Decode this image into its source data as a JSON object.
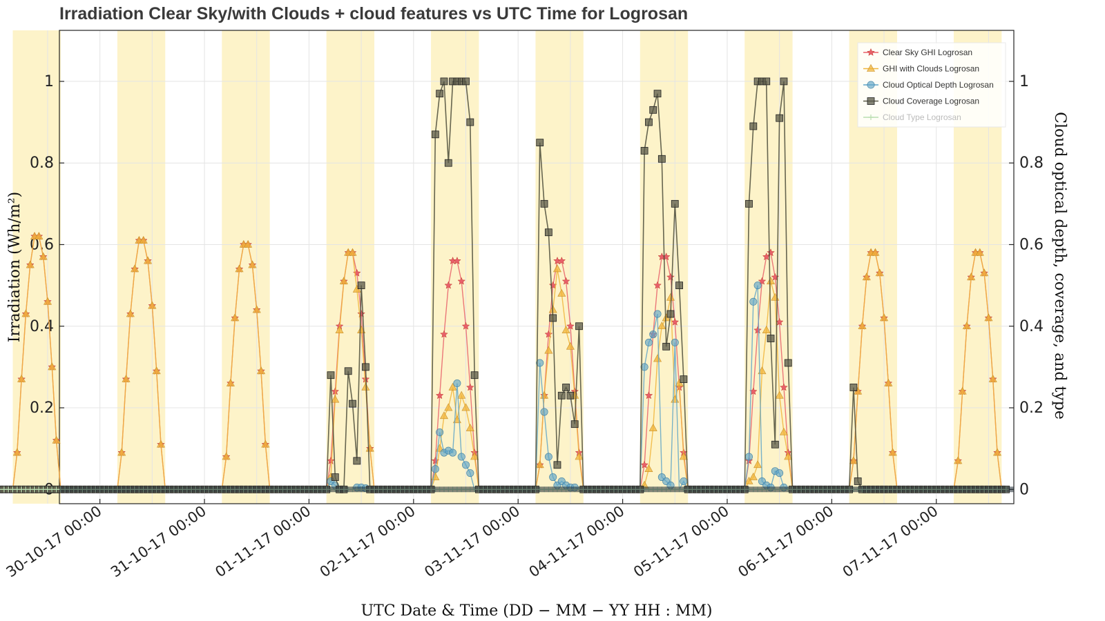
{
  "chart_data": {
    "type": "line",
    "title": "Irradiation Clear Sky/with Clouds + cloud features vs UTC Time for Logrosan",
    "xlabel": "UTC Date & Time (DD − MM − YY  HH : MM)",
    "ylabel": "Irradiation (Wh/m²)",
    "ylabel2": "Cloud optical depth, coverage, and type",
    "x_unit": "hours since 29-10-17 00:00 UTC",
    "xlim": [
      14.7,
      233.8
    ],
    "ylim": [
      -0.035,
      1.125
    ],
    "y2lim": [
      -0.035,
      1.125
    ],
    "yticks": [
      "0",
      "0.2",
      "0.4",
      "0.6",
      "0.8",
      "1"
    ],
    "yticks_values": [
      0,
      0.2,
      0.4,
      0.6,
      0.8,
      1
    ],
    "xticks_values": [
      24,
      48,
      72,
      96,
      120,
      144,
      168,
      192,
      216
    ],
    "xticks": [
      "30-10-17 00:00",
      "31-10-17 00:00",
      "01-11-17 00:00",
      "02-11-17 00:00",
      "03-11-17 00:00",
      "04-11-17 00:00",
      "05-11-17 00:00",
      "06-11-17 00:00",
      "07-11-17 00:00"
    ],
    "grid": true,
    "legend_position": "top-right",
    "daytime_shading": [
      [
        4,
        15
      ],
      [
        28,
        39
      ],
      [
        52,
        63
      ],
      [
        76,
        87
      ],
      [
        100,
        111
      ],
      [
        124,
        135
      ],
      [
        148,
        159
      ],
      [
        172,
        183
      ],
      [
        196,
        207
      ],
      [
        220,
        231
      ]
    ],
    "x_range": [
      0,
      232
    ],
    "day_offsets": [
      0,
      24,
      48,
      72,
      96,
      120,
      144,
      168,
      192,
      216
    ],
    "daylight_hours": [
      5,
      6,
      7,
      8,
      9,
      10,
      11,
      12,
      13,
      14
    ],
    "series": [
      {
        "name": "Clear Sky GHI Logrosan",
        "color": "#e8606a",
        "marker": "star",
        "days": [
          [
            0.09,
            0.27,
            0.43,
            0.55,
            0.62,
            0.62,
            0.57,
            0.46,
            0.3,
            0.12
          ],
          [
            0.09,
            0.27,
            0.43,
            0.54,
            0.61,
            0.61,
            0.56,
            0.45,
            0.29,
            0.11
          ],
          [
            0.08,
            0.26,
            0.42,
            0.54,
            0.6,
            0.6,
            0.55,
            0.44,
            0.29,
            0.11
          ],
          [
            0.07,
            0.24,
            0.4,
            0.51,
            0.58,
            0.58,
            0.53,
            0.43,
            0.27,
            0.1
          ],
          [
            0.07,
            0.23,
            0.38,
            0.5,
            0.56,
            0.56,
            0.51,
            0.4,
            0.25,
            0.09
          ],
          [
            0.06,
            0.23,
            0.38,
            0.5,
            0.56,
            0.56,
            0.51,
            0.4,
            0.24,
            0.09
          ],
          [
            0.06,
            0.23,
            0.38,
            0.5,
            0.57,
            0.57,
            0.52,
            0.41,
            0.25,
            0.09
          ],
          [
            0.07,
            0.24,
            0.39,
            0.51,
            0.57,
            0.58,
            0.52,
            0.41,
            0.25,
            0.09
          ],
          [
            0.07,
            0.24,
            0.4,
            0.52,
            0.58,
            0.58,
            0.53,
            0.42,
            0.26,
            0.09
          ],
          [
            0.07,
            0.24,
            0.4,
            0.52,
            0.58,
            0.58,
            0.53,
            0.42,
            0.27,
            0.09
          ]
        ]
      },
      {
        "name": "GHI with Clouds Logrosan",
        "color": "#f0b43a",
        "marker": "triangle",
        "days": [
          [
            0.09,
            0.27,
            0.43,
            0.55,
            0.62,
            0.62,
            0.57,
            0.46,
            0.3,
            0.12
          ],
          [
            0.09,
            0.27,
            0.43,
            0.54,
            0.61,
            0.61,
            0.56,
            0.45,
            0.29,
            0.11
          ],
          [
            0.08,
            0.26,
            0.42,
            0.54,
            0.6,
            0.6,
            0.55,
            0.44,
            0.29,
            0.11
          ],
          [
            0.03,
            0.22,
            0.39,
            0.51,
            0.58,
            0.58,
            0.49,
            0.39,
            0.25,
            0.1
          ],
          [
            0.03,
            0.1,
            0.18,
            0.2,
            0.25,
            0.17,
            0.23,
            0.2,
            0.15,
            0.08
          ],
          [
            0.06,
            0.23,
            0.34,
            0.44,
            0.54,
            0.48,
            0.39,
            0.35,
            0.23,
            0.08
          ],
          [
            0.01,
            0.05,
            0.15,
            0.32,
            0.4,
            0.42,
            0.47,
            0.22,
            0.26,
            0.08
          ],
          [
            0.02,
            0.03,
            0.06,
            0.29,
            0.39,
            0.51,
            0.47,
            0.23,
            0.14,
            0.08
          ],
          [
            0.07,
            0.24,
            0.4,
            0.52,
            0.58,
            0.58,
            0.53,
            0.42,
            0.26,
            0.09
          ],
          [
            0.07,
            0.24,
            0.4,
            0.52,
            0.58,
            0.58,
            0.53,
            0.42,
            0.27,
            0.09
          ]
        ]
      },
      {
        "name": "Cloud Optical Depth Logrosan",
        "color": "#5fa4c8",
        "marker": "circle",
        "days": [
          [
            0,
            0,
            0,
            0,
            0,
            0,
            0,
            0,
            0,
            0
          ],
          [
            0,
            0,
            0,
            0,
            0,
            0,
            0,
            0,
            0,
            0
          ],
          [
            0,
            0,
            0,
            0,
            0,
            0,
            0,
            0,
            0,
            0
          ],
          [
            0.02,
            0.01,
            0,
            0,
            0,
            0,
            0.005,
            0.005,
            0.003,
            0
          ],
          [
            0.05,
            0.14,
            0.09,
            0.095,
            0.09,
            0.26,
            0.08,
            0.06,
            0.04,
            0
          ],
          [
            0.31,
            0.19,
            0.08,
            0.03,
            0.01,
            0.02,
            0.01,
            0.005,
            0.005,
            0
          ],
          [
            0.3,
            0.36,
            0.38,
            0.43,
            0.03,
            0.02,
            0.01,
            0.36,
            0.0,
            0.02
          ],
          [
            0.08,
            0.46,
            0.5,
            0.02,
            0.01,
            0.005,
            0.045,
            0.04,
            0.005,
            0
          ],
          [
            0,
            0,
            0,
            0,
            0,
            0,
            0,
            0,
            0,
            0
          ],
          [
            0,
            0,
            0,
            0,
            0,
            0,
            0,
            0,
            0,
            0
          ]
        ]
      },
      {
        "name": "Cloud Coverage Logrosan",
        "color": "#5a5a48",
        "marker": "square",
        "days": [
          [
            0,
            0,
            0,
            0,
            0,
            0,
            0,
            0,
            0,
            0
          ],
          [
            0,
            0,
            0,
            0,
            0,
            0,
            0,
            0,
            0,
            0
          ],
          [
            0,
            0,
            0,
            0,
            0,
            0,
            0,
            0,
            0,
            0
          ],
          [
            0.28,
            0.03,
            0,
            0,
            0.29,
            0.21,
            0.07,
            0.5,
            0.3,
            0
          ],
          [
            0.87,
            0.97,
            1.0,
            0.8,
            1.0,
            1.0,
            1.0,
            1.0,
            0.9,
            0.28
          ],
          [
            0.85,
            0.7,
            0.63,
            0.42,
            0.06,
            0.23,
            0.25,
            0.23,
            0.16,
            0.4
          ],
          [
            0.83,
            0.9,
            0.93,
            0.97,
            0.81,
            0.35,
            0.43,
            0.7,
            0.5,
            0.27
          ],
          [
            0.7,
            0.89,
            1.0,
            1.0,
            1.0,
            0.37,
            0.11,
            0.91,
            1.0,
            0.31
          ],
          [
            0.25,
            0.02,
            0,
            0,
            0,
            0,
            0,
            0,
            0,
            0
          ],
          [
            0,
            0,
            0,
            0,
            0,
            0,
            0,
            0,
            0,
            0
          ]
        ]
      },
      {
        "name": "Cloud Type Logrosan",
        "color": "#b9ddb0",
        "marker": "plus",
        "days": [
          [
            0,
            0,
            0,
            0,
            0,
            0,
            0,
            0,
            0,
            0
          ],
          [
            0,
            0,
            0,
            0,
            0,
            0,
            0,
            0,
            0,
            0
          ],
          [
            0,
            0,
            0,
            0,
            0,
            0,
            0,
            0,
            0,
            0
          ],
          [
            0,
            0,
            0,
            0,
            0,
            0,
            0,
            0,
            0,
            0
          ],
          [
            0,
            0,
            0,
            0,
            0,
            0,
            0,
            0,
            0,
            0
          ],
          [
            0,
            0,
            0,
            0,
            0,
            0,
            0,
            0,
            0,
            0
          ],
          [
            0,
            0,
            0,
            0,
            0,
            0,
            0,
            0,
            0,
            0
          ],
          [
            0,
            0,
            0,
            0,
            0,
            0,
            0,
            0,
            0,
            0
          ],
          [
            0,
            0,
            0,
            0,
            0,
            0,
            0,
            0,
            0,
            0
          ],
          [
            0,
            0,
            0,
            0,
            0,
            0,
            0,
            0,
            0,
            0
          ]
        ]
      }
    ]
  }
}
